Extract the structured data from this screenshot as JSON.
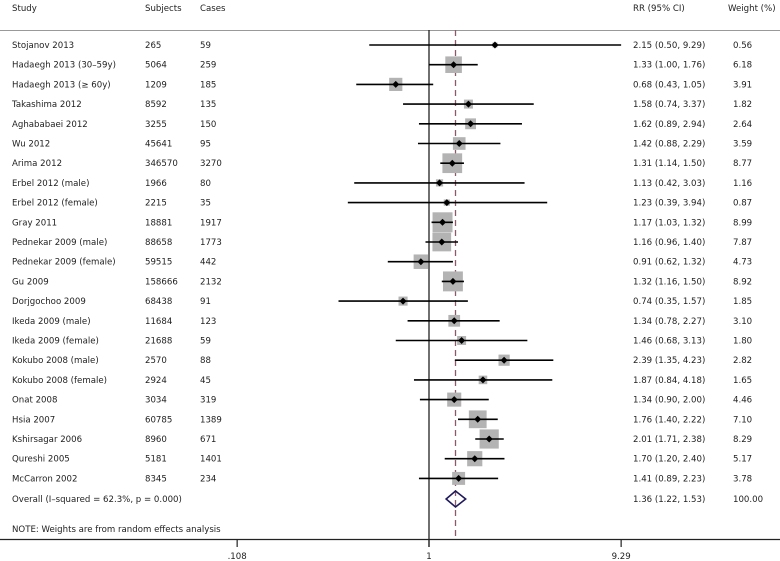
{
  "chart_data": {
    "type": "forest",
    "x_scale": "log",
    "headers": {
      "study": "Study",
      "subjects": "Subjects",
      "cases": "Cases",
      "rr": "RR (95% CI)",
      "weight": "Weight (%)"
    },
    "studies": [
      {
        "study": "Stojanov 2013",
        "subjects": "265",
        "cases": "59",
        "rr": 2.15,
        "lo": 0.5,
        "hi": 9.29,
        "rr_text": "2.15 (0.50, 9.29)",
        "weight": "0.56"
      },
      {
        "study": "Hadaegh 2013 (30–59y)",
        "subjects": "5064",
        "cases": "259",
        "rr": 1.33,
        "lo": 1.0,
        "hi": 1.76,
        "rr_text": "1.33 (1.00, 1.76)",
        "weight": "6.18"
      },
      {
        "study": "Hadaegh 2013 (≥  60y)",
        "subjects": "1209",
        "cases": "185",
        "rr": 0.68,
        "lo": 0.43,
        "hi": 1.05,
        "rr_text": "0.68 (0.43, 1.05)",
        "weight": "3.91"
      },
      {
        "study": "Takashima 2012",
        "subjects": "8592",
        "cases": "135",
        "rr": 1.58,
        "lo": 0.74,
        "hi": 3.37,
        "rr_text": "1.58 (0.74, 3.37)",
        "weight": "1.82"
      },
      {
        "study": "Aghababaei 2012",
        "subjects": "3255",
        "cases": "150",
        "rr": 1.62,
        "lo": 0.89,
        "hi": 2.94,
        "rr_text": "1.62 (0.89, 2.94)",
        "weight": "2.64"
      },
      {
        "study": "Wu 2012",
        "subjects": "45641",
        "cases": "95",
        "rr": 1.42,
        "lo": 0.88,
        "hi": 2.29,
        "rr_text": "1.42 (0.88, 2.29)",
        "weight": "3.59"
      },
      {
        "study": "Arima 2012",
        "subjects": "346570",
        "cases": "3270",
        "rr": 1.31,
        "lo": 1.14,
        "hi": 1.5,
        "rr_text": "1.31 (1.14, 1.50)",
        "weight": "8.77"
      },
      {
        "study": "Erbel 2012 (male)",
        "subjects": "1966",
        "cases": "80",
        "rr": 1.13,
        "lo": 0.42,
        "hi": 3.03,
        "rr_text": "1.13 (0.42, 3.03)",
        "weight": "1.16"
      },
      {
        "study": "Erbel 2012 (female)",
        "subjects": "2215",
        "cases": "35",
        "rr": 1.23,
        "lo": 0.39,
        "hi": 3.94,
        "rr_text": "1.23 (0.39, 3.94)",
        "weight": "0.87"
      },
      {
        "study": "Gray 2011",
        "subjects": "18881",
        "cases": "1917",
        "rr": 1.17,
        "lo": 1.03,
        "hi": 1.32,
        "rr_text": "1.17 (1.03, 1.32)",
        "weight": "8.99"
      },
      {
        "study": "Pednekar 2009 (male)",
        "subjects": "88658",
        "cases": "1773",
        "rr": 1.16,
        "lo": 0.96,
        "hi": 1.4,
        "rr_text": "1.16 (0.96, 1.40)",
        "weight": "7.87"
      },
      {
        "study": "Pednekar 2009 (female)",
        "subjects": "59515",
        "cases": "442",
        "rr": 0.91,
        "lo": 0.62,
        "hi": 1.32,
        "rr_text": "0.91 (0.62, 1.32)",
        "weight": "4.73"
      },
      {
        "study": "Gu 2009",
        "subjects": "158666",
        "cases": "2132",
        "rr": 1.32,
        "lo": 1.16,
        "hi": 1.5,
        "rr_text": "1.32 (1.16, 1.50)",
        "weight": "8.92"
      },
      {
        "study": "Dorjgochoo 2009",
        "subjects": "68438",
        "cases": "91",
        "rr": 0.74,
        "lo": 0.35,
        "hi": 1.57,
        "rr_text": "0.74 (0.35, 1.57)",
        "weight": "1.85"
      },
      {
        "study": "Ikeda 2009 (male)",
        "subjects": "11684",
        "cases": "123",
        "rr": 1.34,
        "lo": 0.78,
        "hi": 2.27,
        "rr_text": "1.34 (0.78, 2.27)",
        "weight": "3.10"
      },
      {
        "study": "Ikeda 2009 (female)",
        "subjects": "21688",
        "cases": "59",
        "rr": 1.46,
        "lo": 0.68,
        "hi": 3.13,
        "rr_text": "1.46 (0.68, 3.13)",
        "weight": "1.80"
      },
      {
        "study": "Kokubo 2008 (male)",
        "subjects": "2570",
        "cases": "88",
        "rr": 2.39,
        "lo": 1.35,
        "hi": 4.23,
        "rr_text": "2.39 (1.35, 4.23)",
        "weight": "2.82"
      },
      {
        "study": "Kokubo 2008 (female)",
        "subjects": "2924",
        "cases": "45",
        "rr": 1.87,
        "lo": 0.84,
        "hi": 4.18,
        "rr_text": "1.87 (0.84, 4.18)",
        "weight": "1.65"
      },
      {
        "study": "Onat 2008",
        "subjects": "3034",
        "cases": "319",
        "rr": 1.34,
        "lo": 0.9,
        "hi": 2.0,
        "rr_text": "1.34 (0.90, 2.00)",
        "weight": "4.46"
      },
      {
        "study": "Hsia 2007",
        "subjects": "60785",
        "cases": "1389",
        "rr": 1.76,
        "lo": 1.4,
        "hi": 2.22,
        "rr_text": "1.76 (1.40, 2.22)",
        "weight": "7.10"
      },
      {
        "study": "Kshirsagar 2006",
        "subjects": "8960",
        "cases": "671",
        "rr": 2.01,
        "lo": 1.71,
        "hi": 2.38,
        "rr_text": "2.01 (1.71, 2.38)",
        "weight": "8.29"
      },
      {
        "study": "Qureshi 2005",
        "subjects": "5181",
        "cases": "1401",
        "rr": 1.7,
        "lo": 1.2,
        "hi": 2.4,
        "rr_text": "1.70 (1.20, 2.40)",
        "weight": "5.17"
      },
      {
        "study": "McCarron 2002",
        "subjects": "8345",
        "cases": "234",
        "rr": 1.41,
        "lo": 0.89,
        "hi": 2.23,
        "rr_text": "1.41 (0.89, 2.23)",
        "weight": "3.78"
      }
    ],
    "overall": {
      "label": "Overall  (I–squared = 62.3%, p = 0.000)",
      "rr": 1.36,
      "lo": 1.22,
      "hi": 1.53,
      "rr_text": "1.36 (1.22, 1.53)",
      "weight": "100.00"
    },
    "note": "NOTE: Weights are from random effects analysis",
    "x_ticks": [
      {
        "value": 0.108,
        "label": ".108"
      },
      {
        "value": 1,
        "label": "1"
      },
      {
        "value": 9.29,
        "label": "9.29"
      }
    ],
    "null_line": 1,
    "colors": {
      "box": "#b3b3b3",
      "point": "#000000",
      "diamond": "#1f1a5a",
      "overall_line": "#8b5a6a"
    }
  }
}
